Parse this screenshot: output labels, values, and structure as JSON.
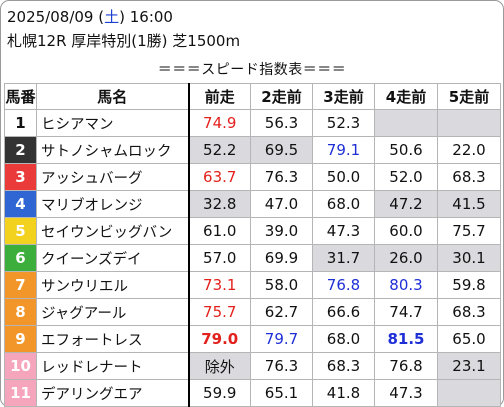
{
  "header": {
    "date": "2025/08/09",
    "weekday": "土",
    "time": "16:00",
    "race_info": "札幌12R 厚岸特別(1勝) 芝1500m",
    "banner": "＝＝＝スピード指数表＝＝＝"
  },
  "columns": [
    "馬番",
    "馬名",
    "前走",
    "2走前",
    "3走前",
    "4走前",
    "5走前"
  ],
  "colors": {
    "red": "#e3211c",
    "blue": "#1f2fd6",
    "highlight_gray": "#d9d9de"
  },
  "rows": [
    {
      "no": "1",
      "name": "ヒシアマン",
      "gate_bg": "#ffffff",
      "gate_fg": "#111111",
      "vals": [
        "74.9",
        "56.3",
        "52.3",
        "",
        ""
      ],
      "hl": [
        "red",
        "",
        "",
        "",
        ""
      ],
      "gray": [
        false,
        false,
        false,
        true,
        true
      ]
    },
    {
      "no": "2",
      "name": "サトノシャムロック",
      "gate_bg": "#333333",
      "gate_fg": "#ffffff",
      "vals": [
        "52.2",
        "69.5",
        "79.1",
        "50.6",
        "22.0"
      ],
      "hl": [
        "",
        "",
        "blue",
        "",
        ""
      ],
      "gray": [
        true,
        true,
        false,
        false,
        false
      ]
    },
    {
      "no": "3",
      "name": "アッシュバーグ",
      "gate_bg": "#ea3a3a",
      "gate_fg": "#ffffff",
      "vals": [
        "63.7",
        "76.3",
        "50.0",
        "52.0",
        "68.3"
      ],
      "hl": [
        "red",
        "",
        "",
        "",
        ""
      ],
      "gray": [
        false,
        false,
        false,
        false,
        false
      ]
    },
    {
      "no": "4",
      "name": "マリブオレンジ",
      "gate_bg": "#2f66d4",
      "gate_fg": "#ffffff",
      "vals": [
        "32.8",
        "47.0",
        "68.0",
        "47.2",
        "41.5"
      ],
      "hl": [
        "",
        "",
        "",
        "",
        ""
      ],
      "gray": [
        true,
        false,
        false,
        true,
        true
      ]
    },
    {
      "no": "5",
      "name": "セイウンビッグバン",
      "gate_bg": "#f2d21e",
      "gate_fg": "#ffffff",
      "vals": [
        "61.0",
        "39.0",
        "47.3",
        "60.0",
        "75.7"
      ],
      "hl": [
        "",
        "",
        "",
        "",
        ""
      ],
      "gray": [
        false,
        false,
        false,
        false,
        false
      ]
    },
    {
      "no": "6",
      "name": "クイーンズデイ",
      "gate_bg": "#3bae3b",
      "gate_fg": "#ffffff",
      "vals": [
        "57.0",
        "69.9",
        "31.7",
        "26.0",
        "30.1"
      ],
      "hl": [
        "",
        "",
        "",
        "",
        ""
      ],
      "gray": [
        false,
        false,
        true,
        true,
        true
      ]
    },
    {
      "no": "7",
      "name": "サンウリエル",
      "gate_bg": "#f2962a",
      "gate_fg": "#ffffff",
      "vals": [
        "73.1",
        "58.0",
        "76.8",
        "80.3",
        "59.8"
      ],
      "hl": [
        "red",
        "",
        "blue",
        "blue",
        ""
      ],
      "gray": [
        false,
        false,
        false,
        false,
        false
      ]
    },
    {
      "no": "8",
      "name": "ジャグアール",
      "gate_bg": "#f2962a",
      "gate_fg": "#ffffff",
      "vals": [
        "75.7",
        "62.7",
        "66.6",
        "74.7",
        "68.3"
      ],
      "hl": [
        "red",
        "",
        "",
        "",
        ""
      ],
      "gray": [
        false,
        false,
        false,
        false,
        false
      ]
    },
    {
      "no": "9",
      "name": "エフォートレス",
      "gate_bg": "#f2962a",
      "gate_fg": "#ffffff",
      "vals": [
        "79.0",
        "79.7",
        "68.0",
        "81.5",
        "65.0"
      ],
      "hl": [
        "redbold",
        "blue",
        "",
        "bluebold",
        ""
      ],
      "gray": [
        false,
        false,
        false,
        false,
        false
      ]
    },
    {
      "no": "10",
      "name": "レッドレナート",
      "gate_bg": "#f5a6bd",
      "gate_fg": "#ffffff",
      "vals": [
        "除外",
        "76.3",
        "68.3",
        "76.8",
        "23.1"
      ],
      "hl": [
        "",
        "",
        "",
        "",
        ""
      ],
      "gray": [
        true,
        false,
        false,
        false,
        true
      ]
    },
    {
      "no": "11",
      "name": "デアリングエア",
      "gate_bg": "#f5a6bd",
      "gate_fg": "#ffffff",
      "vals": [
        "59.9",
        "65.1",
        "41.8",
        "47.3",
        ""
      ],
      "hl": [
        "",
        "",
        "",
        "",
        ""
      ],
      "gray": [
        false,
        false,
        false,
        false,
        true
      ]
    }
  ]
}
